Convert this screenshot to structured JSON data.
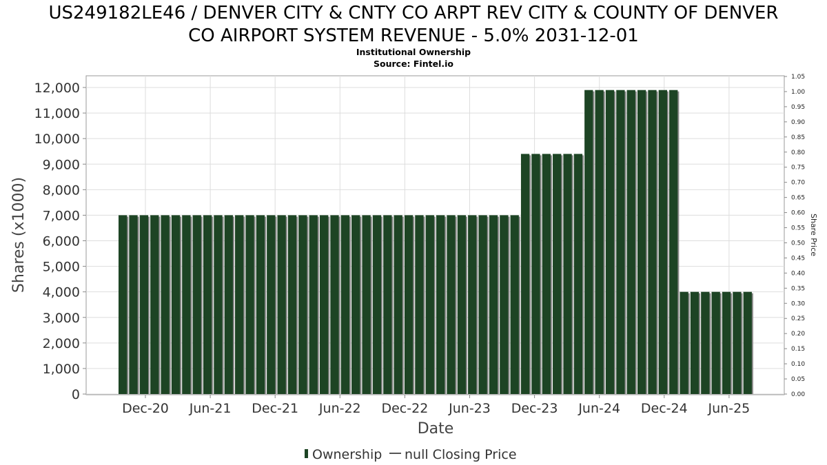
{
  "chart_data": {
    "type": "bar",
    "title_line1": "US249182LE46 / DENVER CITY & CNTY CO ARPT REV CITY & COUNTY OF DENVER",
    "title_line2": "CO AIRPORT SYSTEM REVENUE - 5.0% 2031-12-01",
    "subtitle1": "Institutional Ownership",
    "subtitle2": "Source: Fintel.io",
    "xlabel": "Date",
    "ylabel": "Shares (x1000)",
    "y2label": "Share Price",
    "ylim": [
      0,
      12500
    ],
    "yticks": [
      0,
      1000,
      2000,
      3000,
      4000,
      5000,
      6000,
      7000,
      8000,
      9000,
      10000,
      11000,
      12000
    ],
    "ytick_labels": [
      "0",
      "1,000",
      "2,000",
      "3,000",
      "4,000",
      "5,000",
      "6,000",
      "7,000",
      "8,000",
      "9,000",
      "10,000",
      "11,000",
      "12,000"
    ],
    "y2lim": [
      0,
      1.05
    ],
    "y2ticks": [
      "0.00",
      "0.05",
      "0.10",
      "0.15",
      "0.20",
      "0.25",
      "0.30",
      "0.35",
      "0.40",
      "0.45",
      "0.50",
      "0.55",
      "0.60",
      "0.65",
      "0.70",
      "0.75",
      "0.80",
      "0.85",
      "0.90",
      "0.95",
      "1.00",
      "1.05"
    ],
    "xtick_labels": [
      "Dec-20",
      "Jun-21",
      "Dec-21",
      "Jun-22",
      "Dec-22",
      "Jun-23",
      "Dec-23",
      "Jun-24",
      "Dec-24",
      "Jun-25"
    ],
    "series": [
      {
        "name": "Ownership",
        "values": [
          7000,
          7000,
          7000,
          7000,
          7000,
          7000,
          7000,
          7000,
          7000,
          7000,
          7000,
          7000,
          7000,
          7000,
          7000,
          7000,
          7000,
          7000,
          7000,
          7000,
          7000,
          7000,
          7000,
          7000,
          7000,
          7000,
          7000,
          7000,
          7000,
          7000,
          7000,
          7000,
          7000,
          7000,
          7000,
          7000,
          7000,
          7000,
          9400,
          9400,
          9400,
          9400,
          9400,
          9400,
          11900,
          11900,
          11900,
          11900,
          11900,
          11900,
          11900,
          11900,
          11900,
          4000,
          4000,
          4000,
          4000,
          4000,
          4000,
          4000
        ]
      },
      {
        "name": "null Closing Price",
        "values": []
      }
    ],
    "colors": {
      "bar": "#1d4424",
      "bar_shadow": "#8a8a8a",
      "grid": "#dddddd",
      "axis": "#888888"
    },
    "grid": true,
    "legend_placement": "bottom-center"
  }
}
